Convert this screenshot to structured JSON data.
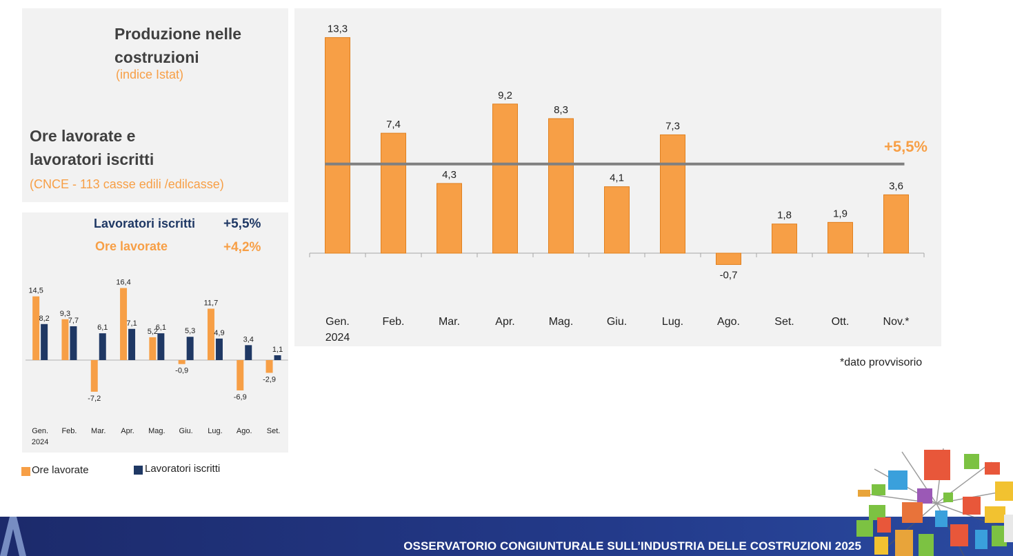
{
  "top_left": {
    "title_line1": "Produzione nelle",
    "title_line2": "costruzioni",
    "source": "(indice Istat)",
    "section_line1": "Ore lavorate e",
    "section_line2": "lavoratori iscritti",
    "section_source": "(CNCE - 113 casse edili /edilcasse)"
  },
  "summary": {
    "lavoratori_label": "Lavoratori iscritti",
    "lavoratori_value": "+5,5%",
    "ore_label": "Ore lavorate",
    "ore_value": "+4,2%"
  },
  "legend": {
    "ore": "Ore lavorate",
    "lavoratori": "Lavoratori iscritti"
  },
  "note": "*dato provvisorio",
  "footer": "OSSERVATORIO CONGIUNTURALE SULL’INDUSTRIA DELLE COSTRUZIONI 2025",
  "colors": {
    "orange": "#f79f46",
    "navy": "#1f3864",
    "avg_line": "#808080",
    "footer": "#1c2a6b"
  },
  "chart_data": [
    {
      "type": "bar",
      "title": "Produzione nelle costruzioni (indice Istat)",
      "categories": [
        "Gen.|2024",
        "Feb.",
        "Mar.",
        "Apr.",
        "Mag.",
        "Giu.",
        "Lug.",
        "Ago.",
        "Set.",
        "Ott.",
        "Nov.*"
      ],
      "values": [
        13.3,
        7.4,
        4.3,
        9.2,
        8.3,
        4.1,
        7.3,
        -0.7,
        1.8,
        1.9,
        3.6
      ],
      "labels": [
        "13,3",
        "7,4",
        "4,3",
        "9,2",
        "8,3",
        "4,1",
        "7,3",
        "-0,7",
        "1,8",
        "1,9",
        "3,6"
      ],
      "average": 5.5,
      "average_label": "+5,5%",
      "ylim": [
        -3.6,
        14.5
      ]
    },
    {
      "type": "bar",
      "title": "Ore lavorate e lavoratori iscritti",
      "categories": [
        "Gen.|2024",
        "Feb.",
        "Mar.",
        "Apr.",
        "Mag.",
        "Giu.",
        "Lug.",
        "Ago.",
        "Set."
      ],
      "series": [
        {
          "name": "Ore lavorate",
          "values": [
            14.5,
            9.3,
            -7.2,
            16.4,
            5.2,
            -0.9,
            11.7,
            -6.9,
            -2.9
          ],
          "labels": [
            "14,5",
            "9,3",
            "-7,2",
            "16,4",
            "5,2",
            "-0,9",
            "11,7",
            "-6,9",
            "-2,9"
          ]
        },
        {
          "name": "Lavoratori iscritti",
          "values": [
            8.2,
            7.7,
            6.1,
            7.1,
            6.1,
            5.3,
            4.9,
            3.4,
            1.1
          ],
          "labels": [
            "8,2",
            "7,7",
            "6,1",
            "7,1",
            "6,1",
            "5,3",
            "4,9",
            "3,4",
            "1,1"
          ]
        }
      ],
      "ylim": [
        -12,
        18
      ]
    }
  ]
}
